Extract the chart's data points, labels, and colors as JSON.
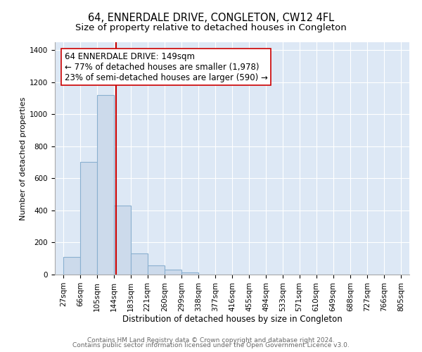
{
  "title": "64, ENNERDALE DRIVE, CONGLETON, CW12 4FL",
  "subtitle": "Size of property relative to detached houses in Congleton",
  "xlabel": "Distribution of detached houses by size in Congleton",
  "ylabel": "Number of detached properties",
  "bin_edges": [
    27,
    66,
    105,
    144,
    183,
    221,
    260,
    299,
    338,
    377,
    416,
    455,
    494,
    533,
    571,
    610,
    649,
    688,
    727,
    766,
    805
  ],
  "bin_labels": [
    "27sqm",
    "66sqm",
    "105sqm",
    "144sqm",
    "183sqm",
    "221sqm",
    "260sqm",
    "299sqm",
    "338sqm",
    "377sqm",
    "416sqm",
    "455sqm",
    "494sqm",
    "533sqm",
    "571sqm",
    "610sqm",
    "649sqm",
    "688sqm",
    "727sqm",
    "766sqm",
    "805sqm"
  ],
  "bar_heights": [
    110,
    705,
    1120,
    430,
    130,
    55,
    30,
    15,
    0,
    0,
    0,
    0,
    0,
    0,
    0,
    0,
    0,
    0,
    0,
    0
  ],
  "bar_color": "#ccdaeb",
  "bar_edge_color": "#8ab0d0",
  "property_size": 149,
  "vline_color": "#cc0000",
  "annotation_line1": "64 ENNERDALE DRIVE: 149sqm",
  "annotation_line2": "← 77% of detached houses are smaller (1,978)",
  "annotation_line3": "23% of semi-detached houses are larger (590) →",
  "annotation_box_color": "#ffffff",
  "annotation_box_edge_color": "#cc0000",
  "ylim": [
    0,
    1450
  ],
  "yticks": [
    0,
    200,
    400,
    600,
    800,
    1000,
    1200,
    1400
  ],
  "footer_line1": "Contains HM Land Registry data © Crown copyright and database right 2024.",
  "footer_line2": "Contains public sector information licensed under the Open Government Licence v3.0.",
  "plot_bg_color": "#dde8f5",
  "fig_bg_color": "#ffffff",
  "title_fontsize": 10.5,
  "subtitle_fontsize": 9.5,
  "xlabel_fontsize": 8.5,
  "ylabel_fontsize": 8,
  "tick_fontsize": 7.5,
  "annotation_fontsize": 8.5,
  "footer_fontsize": 6.5
}
